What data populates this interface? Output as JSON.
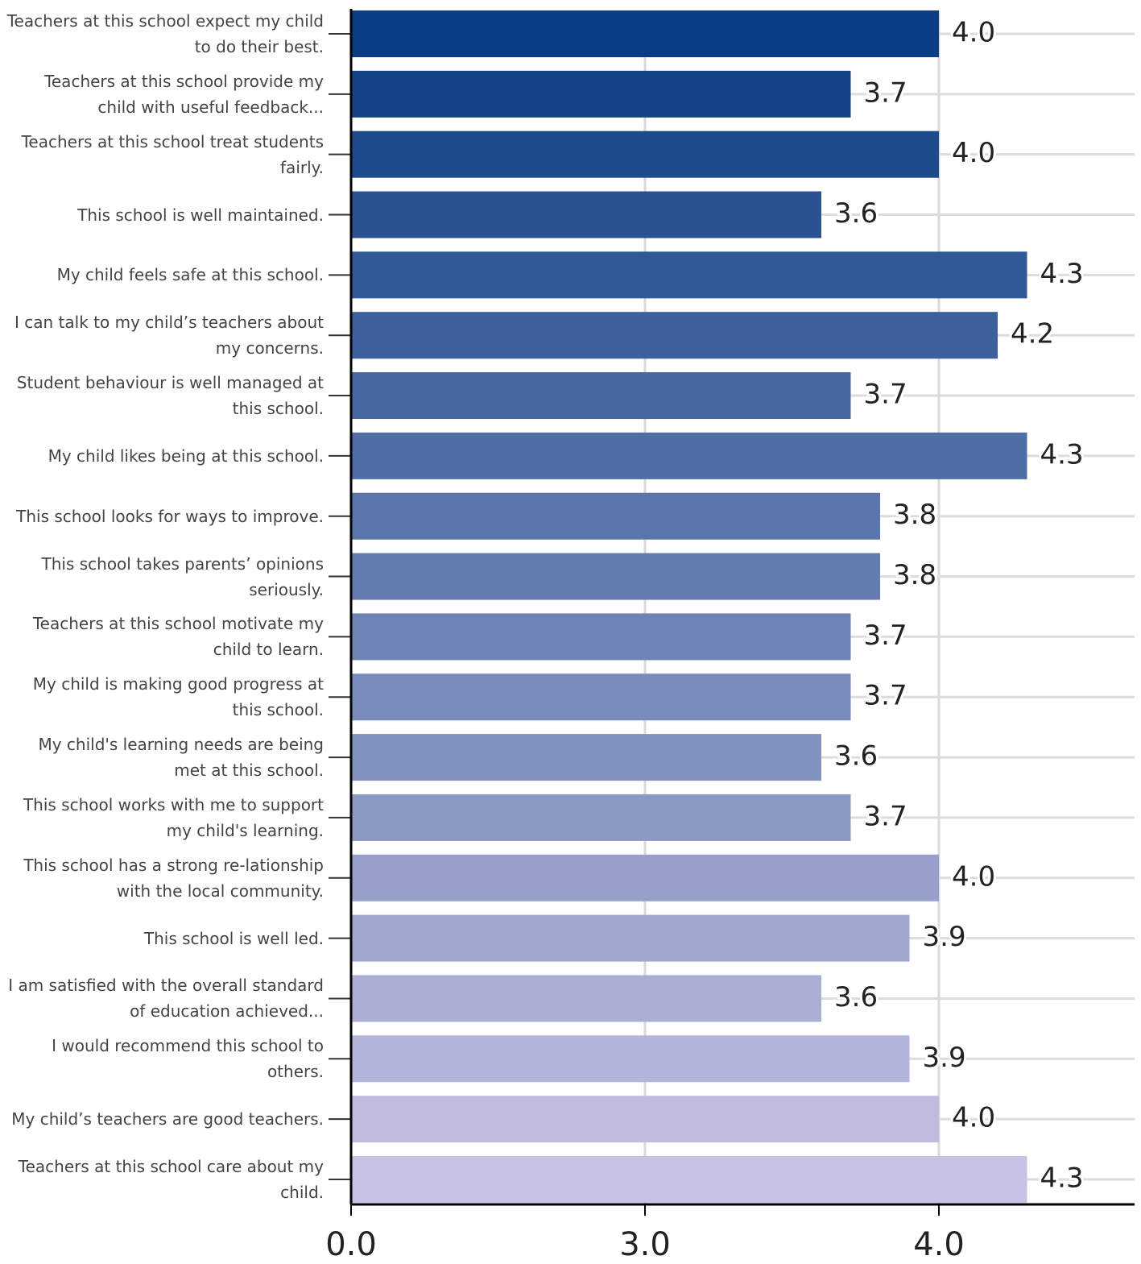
{
  "chart_data": {
    "type": "bar",
    "orientation": "horizontal",
    "categories": [
      "Teachers at this school expect my child to do their best.",
      "Teachers at this school provide my child with useful feedback...",
      "Teachers at this school treat students fairly.",
      "This school is well maintained.",
      "My child feels safe at this school.",
      "I can talk to my child’s teachers about my concerns.",
      "Student behaviour is well managed at this school.",
      "My child likes being at this school.",
      "This school looks for ways to improve.",
      "This school takes parents’ opinions seriously.",
      "Teachers at this school motivate my child to learn.",
      "My child is making good progress at this school.",
      "My child's learning needs are being met at this school.",
      "This school works with me to support my child's learning.",
      "This school has a strong re-lationship with the local community.",
      "This school is well led.",
      "I am satisfied with the overall standard of education achieved...",
      "I would recommend this school to others.",
      "My child’s teachers are good teachers.",
      "Teachers at this school care about my child."
    ],
    "values": [
      4.0,
      3.7,
      4.0,
      3.6,
      4.3,
      4.2,
      3.7,
      4.3,
      3.8,
      3.8,
      3.7,
      3.7,
      3.6,
      3.7,
      4.0,
      3.9,
      3.6,
      3.9,
      4.0,
      4.3
    ],
    "value_labels": [
      "4.0",
      "3.7",
      "4.0",
      "3.6",
      "4.3",
      "4.2",
      "3.7",
      "4.3",
      "3.8",
      "3.8",
      "3.7",
      "3.7",
      "3.6",
      "3.7",
      "4.0",
      "3.9",
      "3.6",
      "3.9",
      "4.0",
      "4.3"
    ],
    "colors": [
      "#0a3d82",
      "#144487",
      "#1e4b8c",
      "#285291",
      "#325997",
      "#3c609c",
      "#4667a1",
      "#506ea6",
      "#5a75ab",
      "#647cb0",
      "#6e84b6",
      "#788bbb",
      "#8292c0",
      "#8c99c5",
      "#96a0ca",
      "#a0a7cf",
      "#aaaed5",
      "#b4b5da",
      "#bebcdf",
      "#c8c3e4"
    ],
    "xlim": [
      0,
      4.6
    ],
    "xticks": [
      {
        "value": 0,
        "label": "0.0"
      },
      {
        "value": 3,
        "label": "3.0"
      },
      {
        "value": 4,
        "label": "4.0"
      }
    ],
    "grid": true
  }
}
